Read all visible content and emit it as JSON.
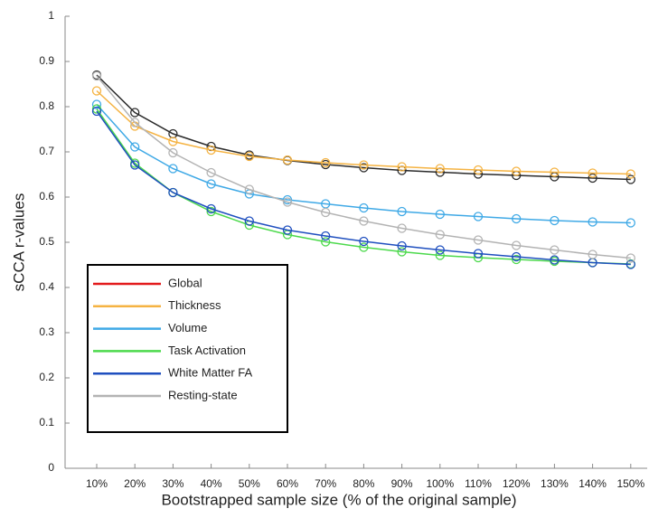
{
  "chart_data": {
    "type": "line",
    "y_label": "sCCA r-values",
    "x_label": "Bootstrapped sample size (% of the original sample)",
    "categories": [
      "10%",
      "20%",
      "30%",
      "40%",
      "50%",
      "60%",
      "70%",
      "80%",
      "90%",
      "100%",
      "110%",
      "120%",
      "130%",
      "140%",
      "150%"
    ],
    "ylim": [
      0,
      1
    ],
    "yticks": [
      0,
      0.1,
      0.2,
      0.3,
      0.4,
      0.5,
      0.6,
      0.7,
      0.8,
      0.9,
      1
    ],
    "series": [
      {
        "name": "Global",
        "color": "#e31a1c",
        "line_color": "#2b2b2b",
        "values": [
          0.87,
          0.787,
          0.74,
          0.712,
          0.693,
          0.681,
          0.672,
          0.665,
          0.659,
          0.655,
          0.651,
          0.648,
          0.645,
          0.642,
          0.639
        ]
      },
      {
        "name": "Thickness",
        "color": "#f5b342",
        "values": [
          0.835,
          0.757,
          0.723,
          0.704,
          0.69,
          0.682,
          0.676,
          0.671,
          0.667,
          0.663,
          0.66,
          0.657,
          0.655,
          0.653,
          0.651
        ]
      },
      {
        "name": "Volume",
        "color": "#3fa9e6",
        "values": [
          0.805,
          0.711,
          0.663,
          0.629,
          0.607,
          0.594,
          0.585,
          0.576,
          0.568,
          0.562,
          0.557,
          0.552,
          0.548,
          0.545,
          0.543
        ]
      },
      {
        "name": "Task Activation",
        "color": "#4cd94c",
        "values": [
          0.795,
          0.675,
          0.61,
          0.568,
          0.538,
          0.517,
          0.501,
          0.489,
          0.479,
          0.471,
          0.466,
          0.462,
          0.458,
          0.455,
          0.452
        ]
      },
      {
        "name": "White Matter FA",
        "color": "#1f4fbf",
        "values": [
          0.79,
          0.671,
          0.61,
          0.574,
          0.547,
          0.527,
          0.514,
          0.502,
          0.492,
          0.483,
          0.475,
          0.468,
          0.461,
          0.455,
          0.451
        ]
      },
      {
        "name": "Resting-state",
        "color": "#b3b3b3",
        "values": [
          0.868,
          0.765,
          0.698,
          0.654,
          0.617,
          0.589,
          0.566,
          0.547,
          0.531,
          0.517,
          0.505,
          0.493,
          0.483,
          0.473,
          0.465
        ]
      }
    ]
  }
}
